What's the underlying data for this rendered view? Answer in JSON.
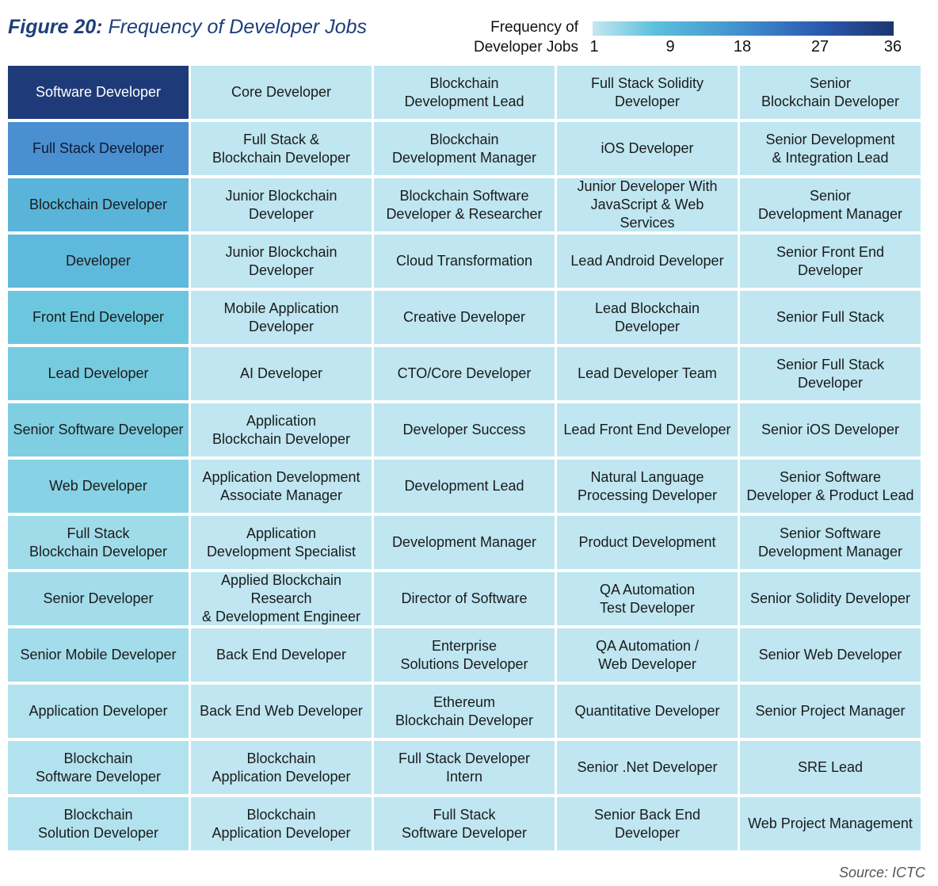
{
  "header": {
    "figure_label": "Figure 20:",
    "figure_title": "Frequency of Developer Jobs",
    "legend_title": "Frequency of\nDeveloper Jobs",
    "legend_ticks": [
      "1",
      "9",
      "18",
      "27",
      "36"
    ]
  },
  "source": "Source: ICTC",
  "chart_data": {
    "type": "heatmap",
    "title": "Frequency of Developer Jobs",
    "legend_title": "Frequency of Developer Jobs",
    "scale_range": [
      1,
      36
    ],
    "colors": {
      "low": "#bfe6f1",
      "high": "#1e3a78"
    },
    "columns": [
      {
        "cells": [
          {
            "label": "Software Developer",
            "color": "#1e3a78"
          },
          {
            "label": "Full Stack Developer",
            "color": "#4a8fcf"
          },
          {
            "label": "Blockchain Developer",
            "color": "#5ab4d9"
          },
          {
            "label": "Developer",
            "color": "#5fb9dc"
          },
          {
            "label": "Front End Developer",
            "color": "#6cc7de"
          },
          {
            "label": "Lead Developer",
            "color": "#77cbe0"
          },
          {
            "label": "Senior Software Developer",
            "color": "#7fcee2"
          },
          {
            "label": "Web Developer",
            "color": "#87d2e4"
          },
          {
            "label": "Full Stack\nBlockchain Developer",
            "color": "#9fdbe9"
          },
          {
            "label": "Senior Developer",
            "color": "#a3dcea"
          },
          {
            "label": "Senior Mobile Developer",
            "color": "#a3dcea"
          },
          {
            "label": "Application Developer",
            "color": "#b2e2ee"
          },
          {
            "label": "Blockchain\nSoftware Developer",
            "color": "#b2e2ee"
          },
          {
            "label": "Blockchain\nSolution Developer",
            "color": "#b2e2ee"
          }
        ]
      },
      {
        "cells": [
          {
            "label": "Core Developer",
            "color": "#bfe6f1"
          },
          {
            "label": "Full Stack &\nBlockchain Developer",
            "color": "#bfe6f1"
          },
          {
            "label": "Junior Blockchain Developer",
            "color": "#bfe6f1"
          },
          {
            "label": "Junior Blockchain Developer",
            "color": "#bfe6f1"
          },
          {
            "label": "Mobile Application\nDeveloper",
            "color": "#bfe6f1"
          },
          {
            "label": "AI Developer",
            "color": "#bfe6f1"
          },
          {
            "label": "Application\nBlockchain Developer",
            "color": "#bfe6f1"
          },
          {
            "label": "Application Development\nAssociate Manager",
            "color": "#bfe6f1"
          },
          {
            "label": "Application\nDevelopment Specialist",
            "color": "#bfe6f1"
          },
          {
            "label": "Applied Blockchain Research\n& Development Engineer",
            "color": "#bfe6f1"
          },
          {
            "label": "Back End Developer",
            "color": "#bfe6f1"
          },
          {
            "label": "Back End Web Developer",
            "color": "#bfe6f1"
          },
          {
            "label": "Blockchain\nApplication Developer",
            "color": "#bfe6f1"
          },
          {
            "label": "Blockchain\nApplication Developer",
            "color": "#bfe6f1"
          }
        ]
      },
      {
        "cells": [
          {
            "label": "Blockchain\nDevelopment Lead",
            "color": "#bfe6f1"
          },
          {
            "label": "Blockchain\nDevelopment Manager",
            "color": "#bfe6f1"
          },
          {
            "label": "Blockchain Software\nDeveloper & Researcher",
            "color": "#bfe6f1"
          },
          {
            "label": "Cloud Transformation",
            "color": "#bfe6f1"
          },
          {
            "label": "Creative Developer",
            "color": "#bfe6f1"
          },
          {
            "label": "CTO/Core Developer",
            "color": "#bfe6f1"
          },
          {
            "label": "Developer Success",
            "color": "#bfe6f1"
          },
          {
            "label": "Development Lead",
            "color": "#bfe6f1"
          },
          {
            "label": "Development Manager",
            "color": "#bfe6f1"
          },
          {
            "label": "Director of Software",
            "color": "#bfe6f1"
          },
          {
            "label": "Enterprise\nSolutions Developer",
            "color": "#bfe6f1"
          },
          {
            "label": "Ethereum\nBlockchain Developer",
            "color": "#bfe6f1"
          },
          {
            "label": "Full Stack Developer Intern",
            "color": "#bfe6f1"
          },
          {
            "label": "Full Stack\nSoftware Developer",
            "color": "#bfe6f1"
          }
        ]
      },
      {
        "cells": [
          {
            "label": "Full Stack Solidity Developer",
            "color": "#bfe6f1"
          },
          {
            "label": "iOS Developer",
            "color": "#bfe6f1"
          },
          {
            "label": "Junior Developer With\nJavaScript & Web Services",
            "color": "#bfe6f1"
          },
          {
            "label": "Lead Android Developer",
            "color": "#bfe6f1"
          },
          {
            "label": "Lead Blockchain Developer",
            "color": "#bfe6f1"
          },
          {
            "label": "Lead Developer Team",
            "color": "#bfe6f1"
          },
          {
            "label": "Lead Front End Developer",
            "color": "#bfe6f1"
          },
          {
            "label": "Natural Language\nProcessing Developer",
            "color": "#bfe6f1"
          },
          {
            "label": "Product Development",
            "color": "#bfe6f1"
          },
          {
            "label": "QA Automation\nTest Developer",
            "color": "#bfe6f1"
          },
          {
            "label": "QA Automation /\nWeb Developer",
            "color": "#bfe6f1"
          },
          {
            "label": "Quantitative Developer",
            "color": "#bfe6f1"
          },
          {
            "label": "Senior .Net Developer",
            "color": "#bfe6f1"
          },
          {
            "label": "Senior Back End Developer",
            "color": "#bfe6f1"
          }
        ]
      },
      {
        "cells": [
          {
            "label": "Senior\nBlockchain Developer",
            "color": "#bfe6f1"
          },
          {
            "label": "Senior Development\n& Integration Lead",
            "color": "#bfe6f1"
          },
          {
            "label": "Senior\nDevelopment Manager",
            "color": "#bfe6f1"
          },
          {
            "label": "Senior Front End Developer",
            "color": "#bfe6f1"
          },
          {
            "label": "Senior Full Stack",
            "color": "#bfe6f1"
          },
          {
            "label": "Senior Full Stack Developer",
            "color": "#bfe6f1"
          },
          {
            "label": "Senior iOS Developer",
            "color": "#bfe6f1"
          },
          {
            "label": "Senior Software\nDeveloper & Product Lead",
            "color": "#bfe6f1"
          },
          {
            "label": "Senior Software\nDevelopment Manager",
            "color": "#bfe6f1"
          },
          {
            "label": "Senior Solidity Developer",
            "color": "#bfe6f1"
          },
          {
            "label": "Senior Web Developer",
            "color": "#bfe6f1"
          },
          {
            "label": "Senior Project Manager",
            "color": "#bfe6f1"
          },
          {
            "label": "SRE Lead",
            "color": "#bfe6f1"
          },
          {
            "label": "Web Project Management",
            "color": "#bfe6f1"
          }
        ]
      }
    ]
  }
}
